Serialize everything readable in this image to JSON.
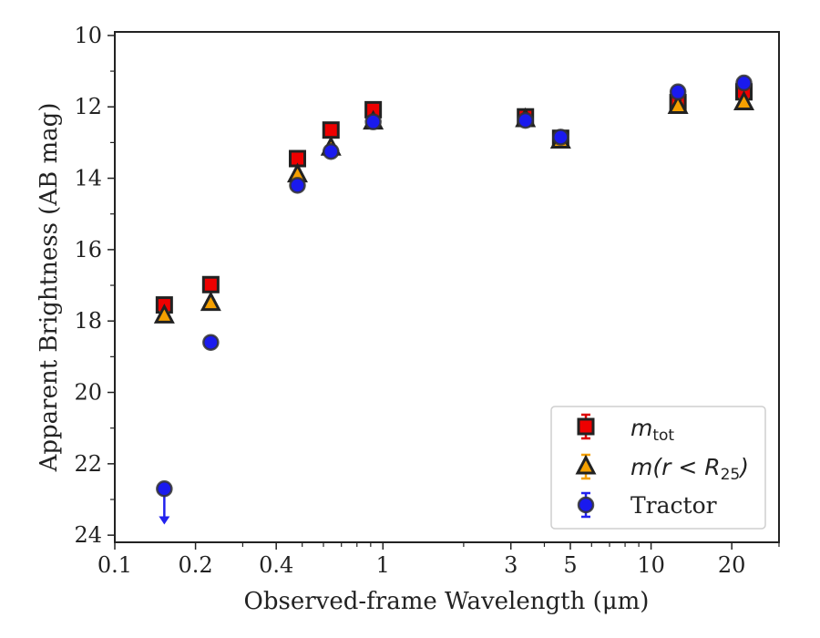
{
  "chart_data": {
    "type": "scatter",
    "xscale": "log",
    "yscale": "linear",
    "y_inverted": true,
    "xlim": [
      0.1,
      30
    ],
    "ylim": [
      24.2,
      9.9
    ],
    "xlabel": "Observed-frame Wavelength (μm)",
    "ylabel": "Apparent Brightness (AB mag)",
    "xticks": [
      {
        "value": 0.1,
        "label": "0.1"
      },
      {
        "value": 0.2,
        "label": "0.2"
      },
      {
        "value": 0.4,
        "label": "0.4"
      },
      {
        "value": 1,
        "label": "1"
      },
      {
        "value": 3,
        "label": "3"
      },
      {
        "value": 5,
        "label": "5"
      },
      {
        "value": 10,
        "label": "10"
      },
      {
        "value": 20,
        "label": "20"
      }
    ],
    "yticks": [
      10,
      12,
      14,
      16,
      18,
      20,
      22,
      24
    ],
    "legend_position": "lower-right",
    "series": [
      {
        "name": "m_tot",
        "marker": "square",
        "face_color": "#ee0000",
        "error_color": "#dd0000",
        "edge_color": "#222222",
        "points": [
          {
            "x": 0.153,
            "y": 17.55,
            "err": 0.1
          },
          {
            "x": 0.228,
            "y": 16.98,
            "err": 0.08
          },
          {
            "x": 0.48,
            "y": 13.45,
            "err": 0.05
          },
          {
            "x": 0.64,
            "y": 12.65,
            "err": 0.05
          },
          {
            "x": 0.92,
            "y": 12.08,
            "err": 0.05
          },
          {
            "x": 3.4,
            "y": 12.28,
            "err": 0.05
          },
          {
            "x": 4.6,
            "y": 12.88,
            "err": 0.05
          },
          {
            "x": 12.6,
            "y": 11.88,
            "err": 0.15
          },
          {
            "x": 22.2,
            "y": 11.58,
            "err": 0.15
          }
        ]
      },
      {
        "name": "m(r < R25)",
        "marker": "triangle",
        "face_color": "#f5a000",
        "error_color": "#f5a000",
        "edge_color": "#222222",
        "points": [
          {
            "x": 0.153,
            "y": 17.85,
            "err": 0.1
          },
          {
            "x": 0.228,
            "y": 17.5,
            "err": 0.08
          },
          {
            "x": 0.48,
            "y": 13.9,
            "err": 0.05
          },
          {
            "x": 0.64,
            "y": 13.15,
            "err": 0.05
          },
          {
            "x": 0.92,
            "y": 12.42,
            "err": 0.05
          },
          {
            "x": 3.4,
            "y": 12.35,
            "err": 0.05
          },
          {
            "x": 4.6,
            "y": 12.95,
            "err": 0.05
          },
          {
            "x": 12.6,
            "y": 11.98,
            "err": 0.1
          },
          {
            "x": 22.2,
            "y": 11.88,
            "err": 0.1
          }
        ]
      },
      {
        "name": "Tractor",
        "marker": "circle",
        "face_color": "#1a1aee",
        "error_color": "#2222ee",
        "edge_color": "#333333",
        "points": [
          {
            "x": 0.153,
            "y": 22.7,
            "upper_limit": true
          },
          {
            "x": 0.228,
            "y": 18.6,
            "err": 0.08
          },
          {
            "x": 0.48,
            "y": 14.2,
            "err": 0.05
          },
          {
            "x": 0.64,
            "y": 13.25,
            "err": 0.05
          },
          {
            "x": 0.92,
            "y": 12.42,
            "err": 0.05
          },
          {
            "x": 3.4,
            "y": 12.38,
            "err": 0.05
          },
          {
            "x": 4.6,
            "y": 12.85,
            "err": 0.05
          },
          {
            "x": 12.6,
            "y": 11.58,
            "err": 0.08
          },
          {
            "x": 22.2,
            "y": 11.33,
            "err": 0.08
          }
        ]
      }
    ]
  },
  "legend": {
    "entries": [
      {
        "main": "m",
        "sub": "tot"
      },
      {
        "main": "m(r < R",
        "sub": "25",
        "tail": ")"
      },
      {
        "main": "Tractor"
      }
    ]
  }
}
